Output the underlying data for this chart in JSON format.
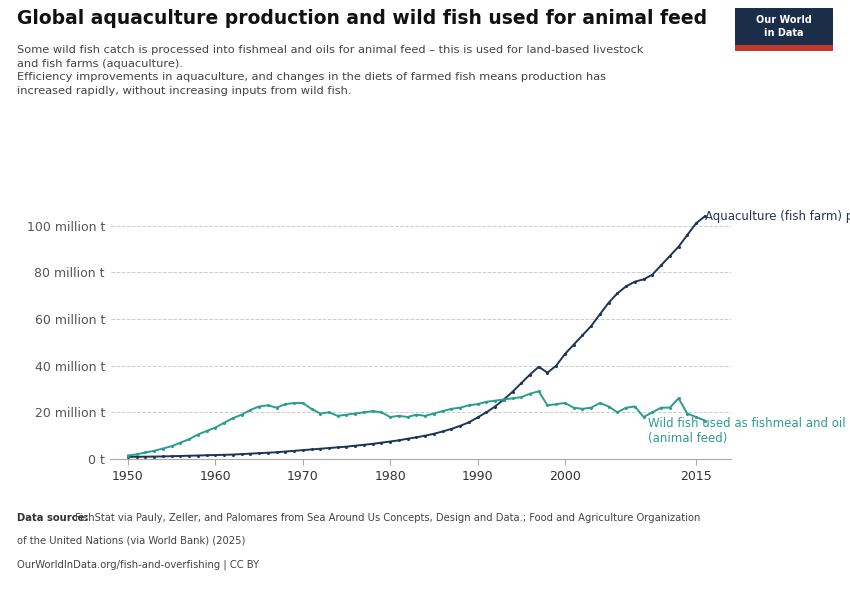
{
  "title": "Global aquaculture production and wild fish used for animal feed",
  "subtitle_lines": [
    "Some wild fish catch is processed into fishmeal and oils for animal feed – this is used for land-based livestock",
    "and fish farms (aquaculture).",
    "Efficiency improvements in aquaculture, and changes in the diets of farmed fish means production has",
    "increased rapidly, without increasing inputs from wild fish."
  ],
  "source_bold": "Data source:",
  "source_rest": " FishStat via Pauly, Zeller, and Palomares from Sea Around Us Concepts, Design and Data.; Food and Agriculture Organization",
  "source_line2": "of the United Nations (via World Bank) (2025)",
  "source_line3": "OurWorldInData.org/fish-and-overfishing | CC BY",
  "aquaculture_color": "#1d3557",
  "wild_fish_color": "#2a9d8f",
  "background_color": "#ffffff",
  "ylim": [
    0,
    108
  ],
  "xlim": [
    1948,
    2019
  ],
  "yticks": [
    0,
    20,
    40,
    60,
    80,
    100
  ],
  "ytick_labels": [
    "0 t",
    "20 million t",
    "40 million t",
    "60 million t",
    "80 million t",
    "100 million t"
  ],
  "xticks": [
    1950,
    1960,
    1970,
    1980,
    1990,
    2000,
    2015
  ],
  "owid_box_color": "#1a2e4a",
  "owid_red": "#c0392b",
  "aquaculture_label": "Aquaculture (fish farm) production",
  "wild_fish_label": "Wild fish used as fishmeal and oil\n(animal feed)",
  "aquaculture_years": [
    1950,
    1951,
    1952,
    1953,
    1954,
    1955,
    1956,
    1957,
    1958,
    1959,
    1960,
    1961,
    1962,
    1963,
    1964,
    1965,
    1966,
    1967,
    1968,
    1969,
    1970,
    1971,
    1972,
    1973,
    1974,
    1975,
    1976,
    1977,
    1978,
    1979,
    1980,
    1981,
    1982,
    1983,
    1984,
    1985,
    1986,
    1987,
    1988,
    1989,
    1990,
    1991,
    1992,
    1993,
    1994,
    1995,
    1996,
    1997,
    1998,
    1999,
    2000,
    2001,
    2002,
    2003,
    2004,
    2005,
    2006,
    2007,
    2008,
    2009,
    2010,
    2011,
    2012,
    2013,
    2014,
    2015,
    2016
  ],
  "aquaculture_values": [
    0.9,
    0.95,
    1.0,
    1.05,
    1.1,
    1.2,
    1.3,
    1.4,
    1.5,
    1.6,
    1.7,
    1.8,
    1.9,
    2.1,
    2.3,
    2.5,
    2.7,
    2.9,
    3.2,
    3.5,
    3.8,
    4.1,
    4.4,
    4.7,
    5.0,
    5.3,
    5.7,
    6.1,
    6.5,
    7.0,
    7.5,
    8.0,
    8.7,
    9.3,
    10.0,
    10.8,
    11.8,
    12.9,
    14.2,
    15.7,
    17.8,
    20.0,
    22.5,
    25.5,
    28.8,
    32.5,
    36.2,
    39.5,
    37.0,
    40.0,
    45.0,
    49.0,
    53.0,
    57.0,
    62.0,
    67.0,
    71.0,
    74.0,
    76.0,
    77.0,
    79.0,
    83.0,
    87.0,
    91.0,
    96.0,
    101.0,
    104.0
  ],
  "wild_fish_years": [
    1950,
    1951,
    1952,
    1953,
    1954,
    1955,
    1956,
    1957,
    1958,
    1959,
    1960,
    1961,
    1962,
    1963,
    1964,
    1965,
    1966,
    1967,
    1968,
    1969,
    1970,
    1971,
    1972,
    1973,
    1974,
    1975,
    1976,
    1977,
    1978,
    1979,
    1980,
    1981,
    1982,
    1983,
    1984,
    1985,
    1986,
    1987,
    1988,
    1989,
    1990,
    1991,
    1992,
    1993,
    1994,
    1995,
    1996,
    1997,
    1998,
    1999,
    2000,
    2001,
    2002,
    2003,
    2004,
    2005,
    2006,
    2007,
    2008,
    2009,
    2010,
    2011,
    2012,
    2013,
    2014,
    2015,
    2016
  ],
  "wild_fish_values": [
    1.5,
    2.0,
    2.8,
    3.5,
    4.5,
    5.5,
    7.0,
    8.5,
    10.5,
    12.0,
    13.5,
    15.5,
    17.5,
    19.0,
    21.0,
    22.5,
    23.0,
    22.0,
    23.5,
    24.0,
    24.0,
    21.5,
    19.5,
    20.0,
    18.5,
    19.0,
    19.5,
    20.0,
    20.5,
    20.0,
    18.0,
    18.5,
    18.0,
    19.0,
    18.5,
    19.5,
    20.5,
    21.5,
    22.0,
    23.0,
    23.5,
    24.5,
    25.0,
    25.5,
    26.0,
    26.5,
    28.0,
    29.0,
    23.0,
    23.5,
    24.0,
    22.0,
    21.5,
    22.0,
    24.0,
    22.5,
    20.0,
    22.0,
    22.5,
    18.0,
    20.0,
    22.0,
    22.0,
    26.0,
    19.5,
    18.0,
    16.5
  ]
}
